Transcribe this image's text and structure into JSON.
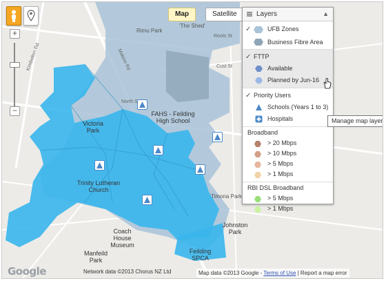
{
  "map": {
    "type_buttons": {
      "map": "Map",
      "satellite": "Satellite"
    },
    "zoom": {
      "plus": "+",
      "minus": "−"
    },
    "labels": {
      "rimu_park": "Rimu Park",
      "the_shed": "'The Shed'",
      "roots_st": "Roots St",
      "cust_st": "Cust St",
      "north_st": "North St",
      "victoria_park": "Victoria Park",
      "fahs": "FAHS - Feilding High School",
      "trinity_church": "Trinity Lutheran Church",
      "timona_park": "Timona Park",
      "coach_house": "Coach House Museum",
      "johnston_park": "Johnston Park",
      "manfeild_park": "Manfeild Park",
      "feilding_spca": "Feilding SPCA",
      "kimbolton_rd": "Kimbolton Rd",
      "makino_rd": "Makino Rd"
    },
    "footer": {
      "google": "Google",
      "network_data": "Network data ©2013 Chorus NZ Ltd",
      "map_data": "Map data ©2013 Google",
      "terms": "Terms of Use",
      "report": "Report a map error"
    },
    "tooltip": "Manage map layers"
  },
  "layers": {
    "title": "Layers",
    "ufb_zones": "UFB Zones",
    "business_fibre": "Business Fibre Area",
    "fttp": "FTTP",
    "available": "Available",
    "planned": "Planned by Jun-16",
    "priority_users": "Priority Users",
    "schools": "Schools (Years 1 to 3)",
    "hospitals": "Hospitals",
    "broadband_title": "Broadband",
    "broadband": [
      "> 20 Mbps",
      "> 10 Mbps",
      "> 5 Mbps",
      "> 1 Mbps"
    ],
    "rbi_title": "RBI DSL Broadband",
    "rbi": [
      "> 5 Mbps",
      "> 1 Mbps"
    ]
  },
  "colors": {
    "fttp_planned": "#39b6ec",
    "ufb_zone": "#a9c3d8",
    "business": "#8fa6b8",
    "bb20": "#b5826c",
    "bb10": "#d3a188",
    "bb5": "#e6b79c",
    "bb1": "#f1d3a6",
    "rbi5": "#9adf7a",
    "rbi1": "#c9f2a2"
  }
}
